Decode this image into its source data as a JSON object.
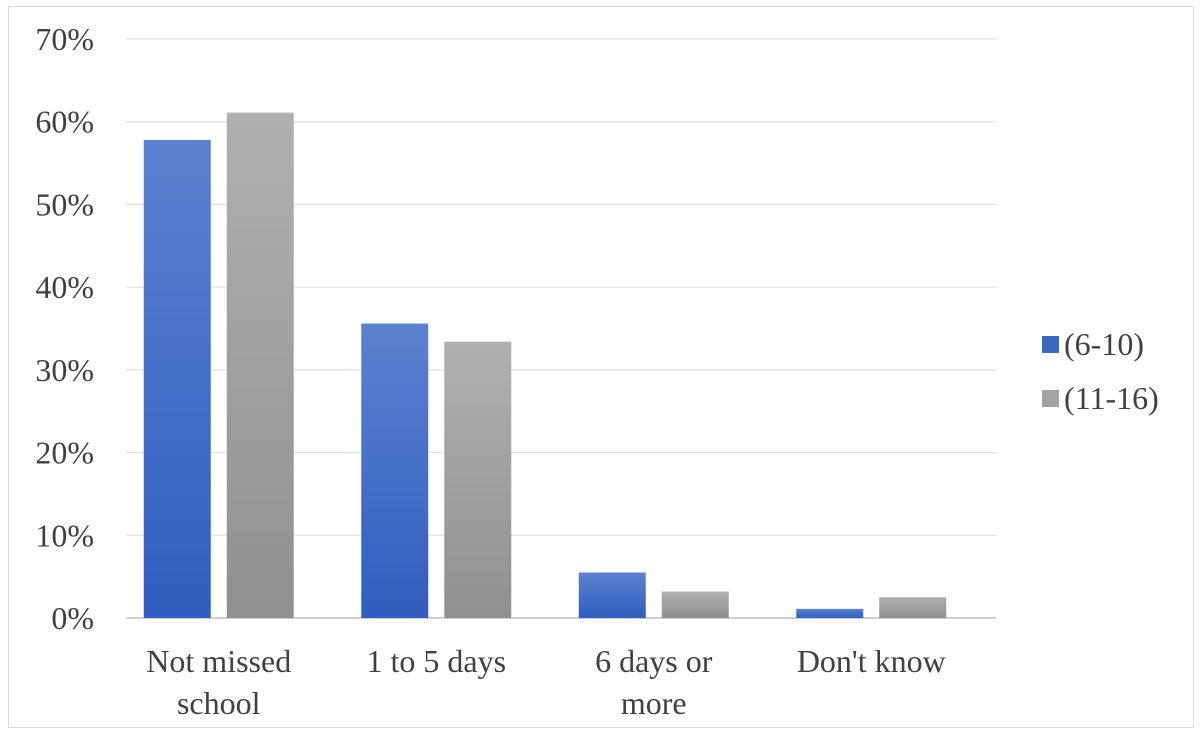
{
  "chart_data": {
    "type": "bar",
    "categories": [
      [
        "Not missed",
        "school"
      ],
      [
        "1 to 5 days"
      ],
      [
        "6 days or",
        "more"
      ],
      [
        "Don't know"
      ]
    ],
    "series": [
      {
        "name": "(6-10)",
        "color": "#3a66c4",
        "values": [
          57.8,
          35.6,
          5.5,
          1.1
        ]
      },
      {
        "name": "(11-16)",
        "color": "#a3a3a3",
        "values": [
          61.1,
          33.4,
          3.2,
          2.5
        ]
      }
    ],
    "yticks": [
      "0%",
      "10%",
      "20%",
      "30%",
      "40%",
      "50%",
      "60%",
      "70%"
    ],
    "ylim": [
      0,
      70
    ],
    "title": "",
    "xlabel": "",
    "ylabel": "",
    "grid": true,
    "legend": "right"
  }
}
